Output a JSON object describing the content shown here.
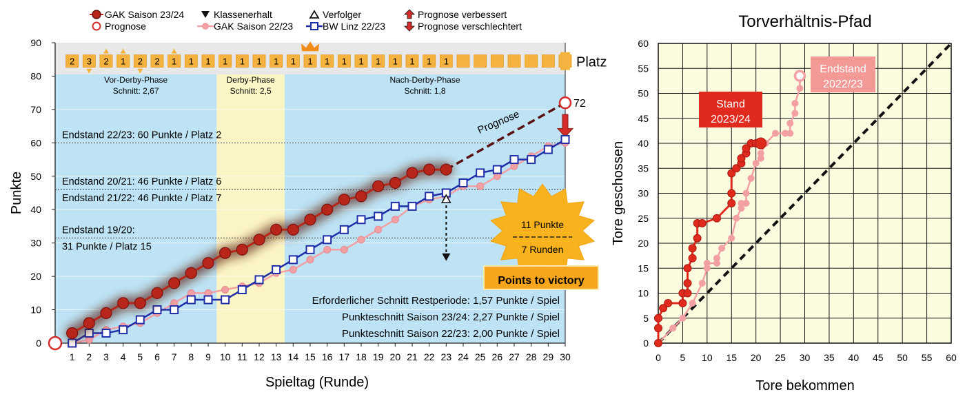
{
  "left_legend": [
    {
      "label": "GAK Saison 23/24",
      "marker": "big-filled-dark"
    },
    {
      "label": "Prognose",
      "marker": "open-red"
    },
    {
      "label": "Klassenerhalt",
      "marker": "tri-down"
    },
    {
      "label": "GAK Saison 22/23",
      "marker": "line-pink"
    },
    {
      "label": "Verfolger",
      "marker": "tri-up"
    },
    {
      "label": "BW Linz 22/23",
      "marker": "square-blue"
    },
    {
      "label": "Prognose verbessert",
      "marker": "arrow-up-red"
    },
    {
      "label": "Prognose verschlechtert",
      "marker": "arrow-down-red"
    }
  ],
  "colors": {
    "gak2324": "#b8251a",
    "gak2324_glow": "#5a1a10",
    "gak2223": "#f2a0a4",
    "bwlinz": "#1f2ea8",
    "prognose": "#d42b2b",
    "prognose_line": "#5a1010",
    "phase_blue": "#bde3f4",
    "phase_yellow": "#fbf4c4",
    "platz_bg": "#e8e8e8",
    "platz_box": "#f4b23e",
    "sun": "#f7b21d",
    "victory_box": "#f7a51a",
    "right_plot_bg": "#fbfbe0",
    "stand_box": "#e02a1e",
    "endstand_box": "#f39a96"
  },
  "phases": [
    {
      "name": "Vor-Derby-Phase",
      "avg": "Schnitt: 2,67",
      "from": 0,
      "to": 9.5,
      "color": "blue"
    },
    {
      "name": "Derby-Phase",
      "avg": "Schnitt: 2,5",
      "from": 9.5,
      "to": 13.5,
      "color": "yellow"
    },
    {
      "name": "Nach-Derby-Phase",
      "avg": "Schnitt: 1,8",
      "from": 13.5,
      "to": 30,
      "color": "blue"
    }
  ],
  "platz": {
    "label": "Platz",
    "values": [
      "2",
      "3",
      "2",
      "1",
      "2",
      "2",
      "1",
      "1",
      "1",
      "1",
      "1",
      "1",
      "1",
      "1",
      "1",
      "1",
      "1",
      "1",
      "1",
      "1",
      "1",
      "1",
      "1",
      "",
      "",
      "",
      "",
      "",
      "",
      ""
    ],
    "tri_up_rounds": [
      3,
      4,
      7
    ],
    "tri_down_rounds": [
      2,
      5
    ],
    "crown_round": 15
  },
  "reference_lines": [
    {
      "y": 60,
      "labels": [
        "Endstand 22/23: 60 Punkte / Platz 2"
      ],
      "label_pos": "above"
    },
    {
      "y": 46,
      "labels": [
        "Endstand 20/21: 46 Punkte / Platz 6",
        "Endstand 21/22: 46 Punkte / Platz 7"
      ],
      "label_pos": "both"
    },
    {
      "y": 31.5,
      "labels": [
        "Endstand 19/20:",
        "31 Punkte / Platz 15"
      ],
      "label_pos": "both"
    }
  ],
  "prognose": {
    "label": "Prognose",
    "from_round": 23,
    "from_points": 52,
    "to_round": 30,
    "to_points": 72,
    "end_value": "72"
  },
  "victory": {
    "top": "11 Punkte",
    "bottom": "7 Runden",
    "caption": "Points to victory",
    "gap_round": 23,
    "gap_from": 45,
    "gap_to": 24
  },
  "stats_text": [
    "Erforderlicher Schnitt Restperiode: 1,57 Punkte / Spiel",
    "Punkteschnitt Saison 23/24: 2,27 Punkte / Spiel",
    "Punkteschnitt Saison 22/23: 2,00 Punkte / Spiel"
  ],
  "chart_data": [
    {
      "type": "line",
      "title": "",
      "xlabel": "Spieltag (Runde)",
      "ylabel": "Punkte",
      "xlim": [
        0,
        30
      ],
      "ylim": [
        0,
        90
      ],
      "x_ticks": [
        1,
        2,
        3,
        4,
        5,
        6,
        7,
        8,
        9,
        10,
        11,
        12,
        13,
        14,
        15,
        16,
        17,
        18,
        19,
        20,
        21,
        22,
        23,
        24,
        25,
        26,
        27,
        28,
        29,
        30
      ],
      "y_ticks": [
        0,
        10,
        20,
        30,
        40,
        50,
        60,
        70,
        80,
        90
      ],
      "series": [
        {
          "name": "GAK Saison 23/24",
          "x": [
            0,
            1,
            2,
            3,
            4,
            5,
            6,
            7,
            8,
            9,
            10,
            11,
            12,
            13,
            14,
            15,
            16,
            17,
            18,
            19,
            20,
            21,
            22,
            23
          ],
          "y": [
            0,
            3,
            6,
            9,
            12,
            12,
            15,
            18,
            21,
            24,
            27,
            28,
            31,
            34,
            34,
            37,
            40,
            43,
            44,
            47,
            48,
            51,
            52,
            52
          ]
        },
        {
          "name": "GAK Saison 22/23",
          "x": [
            1,
            2,
            3,
            4,
            5,
            6,
            7,
            8,
            9,
            10,
            11,
            12,
            13,
            14,
            15,
            16,
            17,
            18,
            19,
            20,
            21,
            22,
            23,
            24,
            25,
            26,
            27,
            28,
            29,
            30
          ],
          "y": [
            0,
            1,
            4,
            5,
            6,
            9,
            12,
            15,
            15,
            16,
            17,
            18,
            21,
            22,
            25,
            28,
            28,
            31,
            34,
            37,
            41,
            43,
            44,
            47,
            47,
            50,
            53,
            56,
            59,
            60
          ]
        },
        {
          "name": "BW Linz 22/23",
          "x": [
            1,
            2,
            3,
            4,
            5,
            6,
            7,
            8,
            9,
            10,
            11,
            12,
            13,
            14,
            15,
            16,
            17,
            18,
            19,
            20,
            21,
            22,
            23,
            24,
            25,
            26,
            27,
            28,
            29,
            30
          ],
          "y": [
            0,
            3,
            3,
            4,
            7,
            10,
            10,
            13,
            13,
            13,
            16,
            19,
            22,
            25,
            28,
            31,
            34,
            37,
            38,
            41,
            41,
            44,
            45,
            48,
            51,
            52,
            55,
            55,
            58,
            61
          ]
        },
        {
          "name": "Prognose",
          "x": [
            0,
            30
          ],
          "y": [
            0,
            72
          ]
        }
      ]
    },
    {
      "type": "scatter",
      "title": "Torverhältnis-Pfad",
      "xlabel": "Tore  bekommen",
      "ylabel": "Tore geschossen",
      "xlim": [
        0,
        60
      ],
      "ylim": [
        0,
        60
      ],
      "x_ticks": [
        0,
        5,
        10,
        15,
        20,
        25,
        30,
        35,
        40,
        45,
        50,
        55,
        60
      ],
      "y_ticks": [
        0,
        5,
        10,
        15,
        20,
        25,
        30,
        35,
        40,
        45,
        50,
        55,
        60
      ],
      "diagonal": true,
      "series": [
        {
          "name": "Stand 2023/24",
          "x": [
            0,
            0,
            0,
            1,
            2,
            5,
            5,
            6,
            6,
            6,
            7,
            7,
            8,
            8,
            9,
            12,
            15,
            15,
            15,
            16,
            17,
            17,
            18,
            18,
            19,
            20,
            21
          ],
          "y": [
            0,
            3,
            5,
            7,
            8,
            8,
            10,
            10,
            12,
            15,
            17,
            19,
            21,
            24,
            24,
            25,
            28,
            30,
            34,
            35,
            36,
            37,
            38,
            39,
            40,
            40,
            40
          ]
        },
        {
          "name": "Endstand 2022/23",
          "x": [
            0,
            3,
            5,
            7,
            9,
            10,
            10,
            12,
            12,
            13,
            15,
            16,
            17,
            17,
            18,
            18,
            19,
            20,
            21,
            21,
            22,
            24,
            26,
            27,
            27,
            28,
            28,
            29,
            29
          ],
          "y": [
            0,
            3,
            5,
            8,
            12,
            15,
            16,
            16,
            17,
            19,
            21,
            25,
            27,
            28,
            28,
            30,
            33,
            36,
            37,
            38,
            40,
            42,
            42,
            42,
            44,
            46,
            48,
            51,
            53.5
          ]
        }
      ],
      "labels": [
        {
          "lines": [
            "Stand",
            "2023/24"
          ],
          "series": "Stand 2023/24"
        },
        {
          "lines": [
            "Endstand",
            "2022/23"
          ],
          "series": "Endstand 2022/23"
        }
      ]
    }
  ]
}
